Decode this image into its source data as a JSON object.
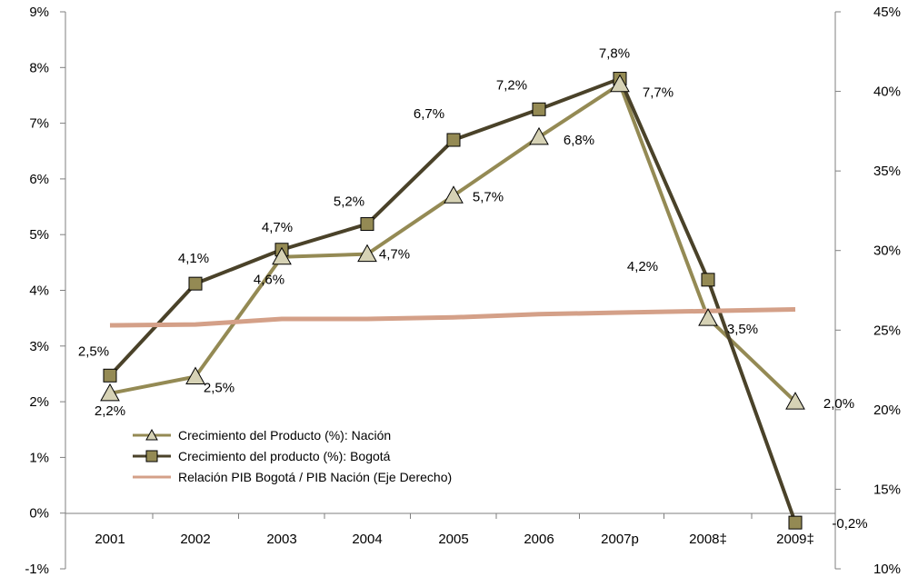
{
  "chart_data": {
    "type": "line",
    "categories": [
      "2001",
      "2002",
      "2003",
      "2004",
      "2005",
      "2006",
      "2007p",
      "2008‡",
      "2009‡"
    ],
    "left_axis": {
      "ylim": [
        -1,
        9
      ],
      "ticks": [
        -1,
        0,
        1,
        2,
        3,
        4,
        5,
        6,
        7,
        8,
        9
      ],
      "tick_labels": [
        "-1%",
        "0%",
        "1%",
        "2%",
        "3%",
        "4%",
        "5%",
        "6%",
        "7%",
        "8%",
        "9%"
      ]
    },
    "right_axis": {
      "ylim": [
        10,
        45
      ],
      "ticks": [
        10,
        15,
        20,
        25,
        30,
        35,
        40,
        45
      ],
      "tick_labels": [
        "10%",
        "15%",
        "20%",
        "25%",
        "30%",
        "35%",
        "40%",
        "45%"
      ]
    },
    "series": [
      {
        "name": "Crecimiento del Producto (%): Nación",
        "axis": "left",
        "marker": "triangle",
        "color": "#948A54",
        "values": [
          2.15,
          2.45,
          4.6,
          4.65,
          5.7,
          6.75,
          7.7,
          3.5,
          2.0
        ],
        "labels": [
          "2,2%",
          "2,5%",
          "4,6%",
          "4,7%",
          "5,7%",
          "6,8%",
          "7,7%",
          "3,5%",
          "2,0%"
        ]
      },
      {
        "name": "Crecimiento del producto (%): Bogotá",
        "axis": "left",
        "marker": "square",
        "color": "#4A4229",
        "values": [
          2.47,
          4.12,
          4.73,
          5.19,
          6.7,
          7.25,
          7.8,
          4.19,
          -0.17
        ],
        "labels": [
          "2,5%",
          "4,1%",
          "4,7%",
          "5,2%",
          "6,7%",
          "7,2%",
          "7,8%",
          "4,2%",
          "-0,2%"
        ]
      },
      {
        "name": "Relación PIB Bogotá / PIB Nación (Eje Derecho)",
        "axis": "right",
        "marker": "none",
        "color": "#D4A088",
        "values": [
          25.3,
          25.35,
          25.7,
          25.7,
          25.8,
          26.0,
          26.1,
          26.2,
          26.3
        ]
      }
    ],
    "grid": "none",
    "legend_position": "bottom-left"
  }
}
